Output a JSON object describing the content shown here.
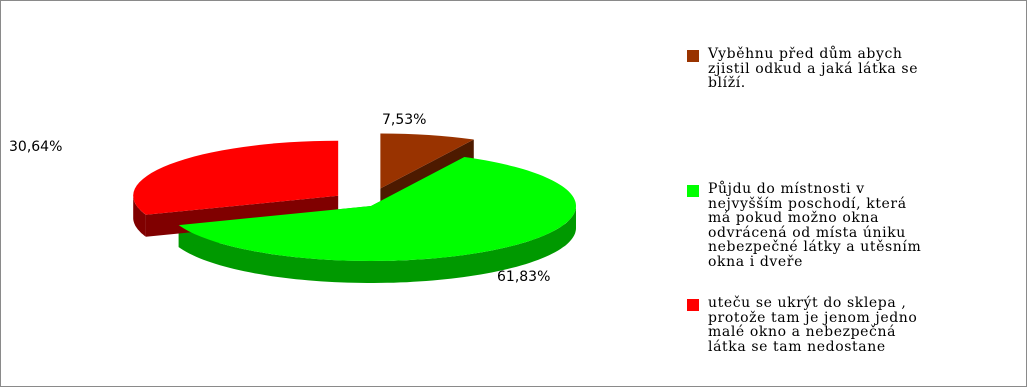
{
  "chart_data": {
    "type": "pie",
    "three_d": true,
    "title": "",
    "slices": [
      {
        "label": "Vyběhnu před dům abych\nzjistil odkud a jaká látka se\nblíží.",
        "value": 7.53,
        "value_label": "7,53%",
        "color": "#993300",
        "side_color": "#4d1a00",
        "exploded": true
      },
      {
        "label": "Půjdu do místnosti v\nnejvyšším poschodí, která\nmá pokud možno okna\nodvrácená od místa úniku\nnebezpečné látky a utěsním\nokna i dveře",
        "value": 61.83,
        "value_label": "61,83%",
        "color": "#00ff00",
        "side_color": "#009900",
        "exploded": false
      },
      {
        "label": "uteču se ukrýt do sklepa ,\nprotože tam je jenom jedno\nmalé okno a nebezpečná\nlátka se tam nedostane",
        "value": 30.64,
        "value_label": "30,64%",
        "color": "#ff0000",
        "side_color": "#800000",
        "exploded": true
      }
    ],
    "legend_position": "right"
  }
}
